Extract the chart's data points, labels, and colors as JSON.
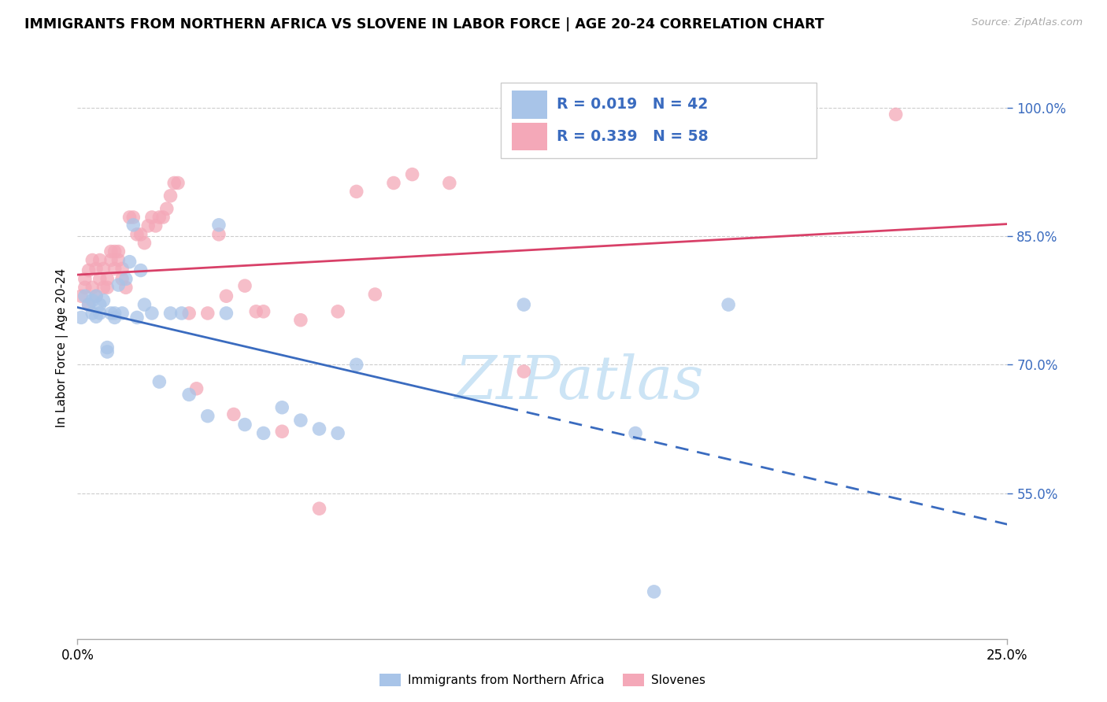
{
  "title": "IMMIGRANTS FROM NORTHERN AFRICA VS SLOVENE IN LABOR FORCE | AGE 20-24 CORRELATION CHART",
  "source": "Source: ZipAtlas.com",
  "ylabel": "In Labor Force | Age 20-24",
  "xlim": [
    0.0,
    0.25
  ],
  "ylim": [
    0.38,
    1.06
  ],
  "ytick_vals": [
    0.55,
    0.7,
    0.85,
    1.0
  ],
  "ytick_labels": [
    "55.0%",
    "70.0%",
    "85.0%",
    "100.0%"
  ],
  "xtick_vals": [
    0.0,
    0.25
  ],
  "xtick_labels": [
    "0.0%",
    "25.0%"
  ],
  "blue_x": [
    0.001,
    0.002,
    0.003,
    0.004,
    0.004,
    0.005,
    0.005,
    0.006,
    0.006,
    0.007,
    0.008,
    0.008,
    0.009,
    0.01,
    0.01,
    0.011,
    0.012,
    0.013,
    0.014,
    0.015,
    0.016,
    0.017,
    0.018,
    0.02,
    0.022,
    0.025,
    0.028,
    0.03,
    0.035,
    0.038,
    0.04,
    0.045,
    0.05,
    0.055,
    0.06,
    0.065,
    0.07,
    0.075,
    0.12,
    0.15,
    0.155,
    0.175
  ],
  "blue_y": [
    0.755,
    0.78,
    0.77,
    0.76,
    0.775,
    0.78,
    0.756,
    0.77,
    0.76,
    0.775,
    0.72,
    0.715,
    0.76,
    0.76,
    0.755,
    0.793,
    0.76,
    0.8,
    0.82,
    0.863,
    0.755,
    0.81,
    0.77,
    0.76,
    0.68,
    0.76,
    0.76,
    0.665,
    0.64,
    0.863,
    0.76,
    0.63,
    0.62,
    0.65,
    0.635,
    0.625,
    0.62,
    0.7,
    0.77,
    0.62,
    0.435,
    0.77
  ],
  "pink_x": [
    0.001,
    0.002,
    0.002,
    0.003,
    0.003,
    0.004,
    0.004,
    0.005,
    0.005,
    0.006,
    0.006,
    0.007,
    0.007,
    0.008,
    0.008,
    0.009,
    0.009,
    0.01,
    0.01,
    0.011,
    0.011,
    0.012,
    0.012,
    0.013,
    0.014,
    0.015,
    0.016,
    0.017,
    0.018,
    0.019,
    0.02,
    0.021,
    0.022,
    0.023,
    0.024,
    0.025,
    0.026,
    0.027,
    0.03,
    0.032,
    0.035,
    0.038,
    0.04,
    0.042,
    0.045,
    0.048,
    0.05,
    0.055,
    0.06,
    0.065,
    0.07,
    0.075,
    0.08,
    0.085,
    0.09,
    0.1,
    0.12,
    0.22
  ],
  "pink_y": [
    0.78,
    0.79,
    0.8,
    0.77,
    0.81,
    0.79,
    0.822,
    0.78,
    0.812,
    0.822,
    0.8,
    0.79,
    0.812,
    0.8,
    0.79,
    0.832,
    0.822,
    0.812,
    0.832,
    0.832,
    0.822,
    0.8,
    0.812,
    0.79,
    0.872,
    0.872,
    0.852,
    0.852,
    0.842,
    0.862,
    0.872,
    0.862,
    0.872,
    0.872,
    0.882,
    0.897,
    0.912,
    0.912,
    0.76,
    0.672,
    0.76,
    0.852,
    0.78,
    0.642,
    0.792,
    0.762,
    0.762,
    0.622,
    0.752,
    0.532,
    0.762,
    0.902,
    0.782,
    0.912,
    0.922,
    0.912,
    0.692,
    0.992
  ],
  "blue_scatter_color": "#a8c4e8",
  "pink_scatter_color": "#f4a8b8",
  "blue_line_color": "#3a6bbf",
  "pink_line_color": "#d84068",
  "ytick_color": "#3a6bbf",
  "grid_color": "#cccccc",
  "R_blue": "0.019",
  "N_blue": "42",
  "R_pink": "0.339",
  "N_pink": "58",
  "watermark_color": "#cce4f5",
  "legend_label_blue": "Immigrants from Northern Africa",
  "legend_label_pink": "Slovenes"
}
